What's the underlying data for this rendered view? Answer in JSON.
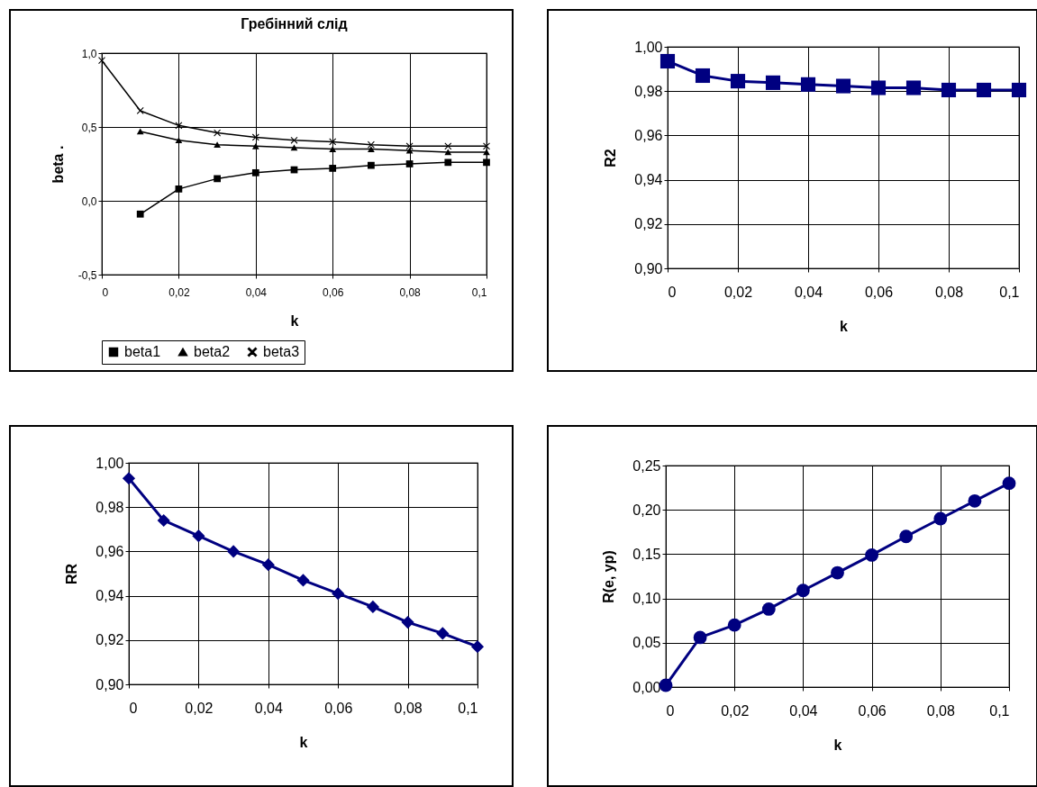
{
  "chart_data": [
    {
      "type": "line",
      "title": "Гребінний слід",
      "xlabel": "k",
      "ylabel": "beta .",
      "x": [
        0,
        0.01,
        0.02,
        0.03,
        0.04,
        0.05,
        0.06,
        0.07,
        0.08,
        0.09,
        0.1
      ],
      "xlim": [
        0,
        0.1
      ],
      "xticks": [
        {
          "value": 0,
          "label": "0"
        },
        {
          "value": 0.02,
          "label": "0,02"
        },
        {
          "value": 0.04,
          "label": "0,04"
        },
        {
          "value": 0.06,
          "label": "0,06"
        },
        {
          "value": 0.08,
          "label": "0,08"
        },
        {
          "value": 0.1,
          "label": "0,1"
        }
      ],
      "ylim": [
        -0.5,
        1.0
      ],
      "yticks": [
        {
          "value": -0.5,
          "label": "-0,5"
        },
        {
          "value": 0,
          "label": "0,0"
        },
        {
          "value": 0.5,
          "label": "0,5"
        },
        {
          "value": 1.0,
          "label": "1,0"
        }
      ],
      "grid": true,
      "legend": "bottom",
      "series": [
        {
          "name": "beta1",
          "color": "#000000",
          "marker": "square",
          "values": [
            null,
            -0.09,
            0.08,
            0.15,
            0.19,
            0.21,
            0.22,
            0.24,
            0.25,
            0.26,
            0.26
          ]
        },
        {
          "name": "beta2",
          "color": "#000000",
          "marker": "triangle",
          "values": [
            null,
            0.47,
            0.41,
            0.38,
            0.37,
            0.36,
            0.35,
            0.35,
            0.34,
            0.33,
            0.33
          ]
        },
        {
          "name": "beta3",
          "color": "#000000",
          "marker": "cross",
          "values": [
            0.95,
            0.61,
            0.51,
            0.46,
            0.43,
            0.41,
            0.4,
            0.38,
            0.37,
            0.37,
            0.37
          ]
        }
      ]
    },
    {
      "type": "line",
      "xlabel": "k",
      "ylabel": "R2",
      "x": [
        0,
        0.01,
        0.02,
        0.03,
        0.04,
        0.05,
        0.06,
        0.07,
        0.08,
        0.09,
        0.1
      ],
      "xlim": [
        0,
        0.1
      ],
      "xticks": [
        {
          "value": 0,
          "label": "0"
        },
        {
          "value": 0.02,
          "label": "0,02"
        },
        {
          "value": 0.04,
          "label": "0,04"
        },
        {
          "value": 0.06,
          "label": "0,06"
        },
        {
          "value": 0.08,
          "label": "0,08"
        },
        {
          "value": 0.1,
          "label": "0,1"
        }
      ],
      "ylim": [
        0.9,
        1.0
      ],
      "yticks": [
        {
          "value": 0.9,
          "label": "0,90"
        },
        {
          "value": 0.92,
          "label": "0,92"
        },
        {
          "value": 0.94,
          "label": "0,94"
        },
        {
          "value": 0.96,
          "label": "0,96"
        },
        {
          "value": 0.98,
          "label": "0,98"
        },
        {
          "value": 1.0,
          "label": "1,00"
        }
      ],
      "grid": true,
      "series": [
        {
          "color": "#000080",
          "marker": "square",
          "values": [
            0.9935,
            0.987,
            0.9845,
            0.9838,
            0.983,
            0.9823,
            0.9815,
            0.9815,
            0.9805,
            0.9805,
            0.9805
          ]
        }
      ]
    },
    {
      "type": "line",
      "xlabel": "k",
      "ylabel": "RR",
      "x": [
        0,
        0.01,
        0.02,
        0.03,
        0.04,
        0.05,
        0.06,
        0.07,
        0.08,
        0.09,
        0.1
      ],
      "xlim": [
        0,
        0.1
      ],
      "xticks": [
        {
          "value": 0,
          "label": "0"
        },
        {
          "value": 0.02,
          "label": "0,02"
        },
        {
          "value": 0.04,
          "label": "0,04"
        },
        {
          "value": 0.06,
          "label": "0,06"
        },
        {
          "value": 0.08,
          "label": "0,08"
        },
        {
          "value": 0.1,
          "label": "0,1"
        }
      ],
      "ylim": [
        0.9,
        1.0
      ],
      "yticks": [
        {
          "value": 0.9,
          "label": "0,90"
        },
        {
          "value": 0.92,
          "label": "0,92"
        },
        {
          "value": 0.94,
          "label": "0,94"
        },
        {
          "value": 0.96,
          "label": "0,96"
        },
        {
          "value": 0.98,
          "label": "0,98"
        },
        {
          "value": 1.0,
          "label": "1,00"
        }
      ],
      "grid": true,
      "series": [
        {
          "color": "#000080",
          "marker": "diamond",
          "values": [
            0.993,
            0.974,
            0.967,
            0.96,
            0.954,
            0.947,
            0.941,
            0.935,
            0.928,
            0.923,
            0.917
          ]
        }
      ]
    },
    {
      "type": "line",
      "xlabel": "k",
      "ylabel": "R(e, yp)",
      "x": [
        0,
        0.01,
        0.02,
        0.03,
        0.04,
        0.05,
        0.06,
        0.07,
        0.08,
        0.09,
        0.1
      ],
      "xlim": [
        0,
        0.1
      ],
      "xticks": [
        {
          "value": 0,
          "label": "0"
        },
        {
          "value": 0.02,
          "label": "0,02"
        },
        {
          "value": 0.04,
          "label": "0,04"
        },
        {
          "value": 0.06,
          "label": "0,06"
        },
        {
          "value": 0.08,
          "label": "0,08"
        },
        {
          "value": 0.1,
          "label": "0,1"
        }
      ],
      "ylim": [
        0,
        0.25
      ],
      "yticks": [
        {
          "value": 0,
          "label": "0,00"
        },
        {
          "value": 0.05,
          "label": "0,05"
        },
        {
          "value": 0.1,
          "label": "0,10"
        },
        {
          "value": 0.15,
          "label": "0,15"
        },
        {
          "value": 0.2,
          "label": "0,20"
        },
        {
          "value": 0.25,
          "label": "0,25"
        }
      ],
      "grid": true,
      "series": [
        {
          "color": "#000080",
          "marker": "circle",
          "values": [
            0.002,
            0.056,
            0.07,
            0.088,
            0.109,
            0.129,
            0.149,
            0.17,
            0.19,
            0.21,
            0.23
          ]
        }
      ]
    }
  ]
}
